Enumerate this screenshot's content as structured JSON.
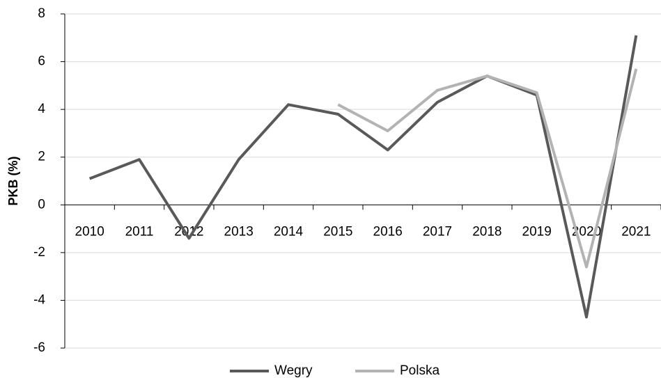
{
  "chart_data": {
    "type": "line",
    "y_label": "PKB (%)",
    "categories": [
      "2010",
      "2011",
      "2012",
      "2013",
      "2014",
      "2015",
      "2016",
      "2017",
      "2018",
      "2019",
      "2020",
      "2021"
    ],
    "series": [
      {
        "name": "Wegry",
        "color": "#595959",
        "values": [
          1.1,
          1.9,
          -1.4,
          1.9,
          4.2,
          3.8,
          2.3,
          4.3,
          5.4,
          4.6,
          -4.7,
          7.1
        ]
      },
      {
        "name": "Polska",
        "color": "#b3b3b3",
        "values": [
          null,
          null,
          null,
          null,
          null,
          4.2,
          3.1,
          4.8,
          5.4,
          4.7,
          -2.6,
          5.7
        ]
      }
    ],
    "ylim": [
      -6,
      8
    ],
    "yticks": [
      -6,
      -4,
      -2,
      0,
      2,
      4,
      6,
      8
    ],
    "grid": true,
    "legend": "bottom"
  }
}
